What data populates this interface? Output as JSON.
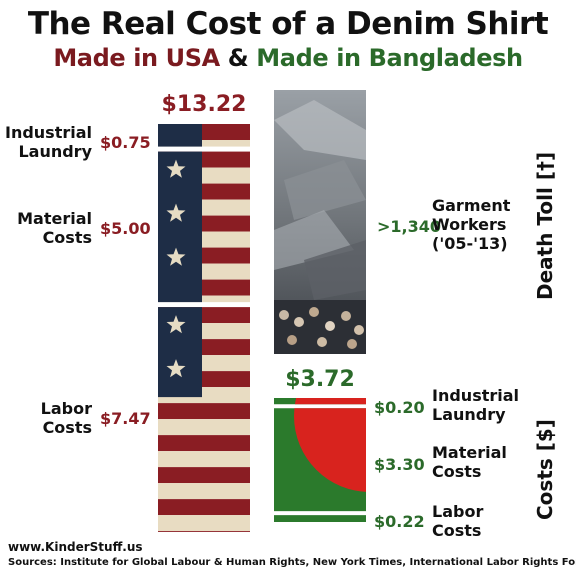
{
  "header": {
    "title": "The Real Cost of a Denim Shirt",
    "subtitle_usa": "Made in USA",
    "subtitle_amp": "&",
    "subtitle_bd": "Made in Bangladesh"
  },
  "colors": {
    "usa_red": "#8a1d23",
    "usa_blue": "#1e2d46",
    "bd_green": "#2b7a2c",
    "bd_red": "#d8231e"
  },
  "chart_data": [
    {
      "type": "bar",
      "name": "Made in USA",
      "total_label": "$13.22",
      "total": 13.22,
      "categories": [
        "Industrial Laundry",
        "Material Costs",
        "Labor Costs"
      ],
      "category_lines": [
        [
          "Industrial",
          "Laundry"
        ],
        [
          "Material",
          "Costs"
        ],
        [
          "Labor",
          "Costs"
        ]
      ],
      "values": [
        0.75,
        5.0,
        7.47
      ],
      "value_labels": [
        "$0.75",
        "$5.00",
        "$7.47"
      ]
    },
    {
      "type": "bar",
      "name": "Made in Bangladesh",
      "total_label": "$3.72",
      "total": 3.72,
      "axis_label": "Costs [$]",
      "categories": [
        "Industrial Laundry",
        "Material Costs",
        "Labor Costs"
      ],
      "category_lines": [
        [
          "Industrial",
          "Laundry"
        ],
        [
          "Material",
          "Costs"
        ],
        [
          "Labor",
          "Costs"
        ]
      ],
      "values": [
        0.2,
        3.3,
        0.22
      ],
      "value_labels": [
        "$0.20",
        "$3.30",
        "$0.22"
      ]
    }
  ],
  "death_toll": {
    "value_label": ">1,340",
    "lines": [
      "Garment",
      "Workers",
      "('05-'13)"
    ],
    "axis_label": "Death Toll [†]"
  },
  "footer": {
    "site": "www.KinderStuff.us",
    "sources": "Sources: Institute for Global Labour & Human Rights, New York Times, International Labor Rights Forum"
  }
}
